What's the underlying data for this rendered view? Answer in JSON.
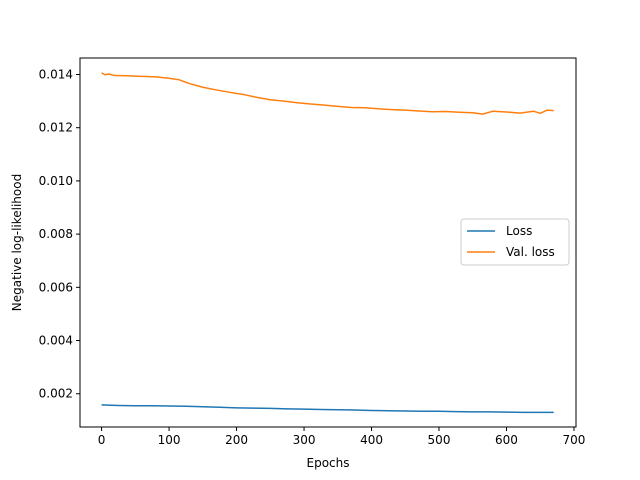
{
  "chart_data": {
    "type": "line",
    "title": "",
    "xlabel": "Epochs",
    "ylabel": "Negative log-likelihood",
    "xlim": [
      -32,
      703
    ],
    "ylim": [
      0.00075,
      0.01462
    ],
    "xticks": [
      0,
      100,
      200,
      300,
      400,
      500,
      600,
      700
    ],
    "yticks": [
      0.002,
      0.004,
      0.006,
      0.008,
      0.01,
      0.012,
      0.014
    ],
    "ytick_labels": [
      "0.002",
      "0.004",
      "0.006",
      "0.008",
      "0.010",
      "0.012",
      "0.014"
    ],
    "legend_position": "center-right",
    "grid": false,
    "series": [
      {
        "name": "Loss",
        "color": "#1f77b4",
        "x": [
          0,
          25,
          50,
          75,
          100,
          125,
          150,
          175,
          200,
          225,
          250,
          275,
          300,
          325,
          350,
          375,
          400,
          425,
          450,
          475,
          500,
          525,
          550,
          575,
          600,
          625,
          650,
          670
        ],
        "y": [
          0.00158,
          0.00156,
          0.00155,
          0.00155,
          0.00154,
          0.00153,
          0.00151,
          0.00149,
          0.00147,
          0.00146,
          0.00145,
          0.00143,
          0.00142,
          0.00141,
          0.0014,
          0.00139,
          0.00137,
          0.00136,
          0.00135,
          0.00134,
          0.00134,
          0.00133,
          0.00132,
          0.00132,
          0.00131,
          0.0013,
          0.0013,
          0.0013
        ]
      },
      {
        "name": "Val. loss",
        "color": "#ff7f0e",
        "x": [
          0,
          5,
          10,
          20,
          40,
          60,
          80,
          100,
          115,
          130,
          150,
          170,
          190,
          210,
          230,
          250,
          270,
          290,
          310,
          330,
          350,
          370,
          390,
          410,
          430,
          450,
          470,
          490,
          510,
          530,
          550,
          565,
          580,
          600,
          620,
          640,
          650,
          660,
          670
        ],
        "y": [
          0.01406,
          0.01399,
          0.01402,
          0.01396,
          0.01395,
          0.01393,
          0.01391,
          0.01386,
          0.0138,
          0.01366,
          0.01352,
          0.01342,
          0.01333,
          0.01325,
          0.01314,
          0.01305,
          0.013,
          0.01294,
          0.01289,
          0.01285,
          0.0128,
          0.01276,
          0.01275,
          0.01271,
          0.01268,
          0.01266,
          0.01263,
          0.0126,
          0.01261,
          0.01258,
          0.01256,
          0.01251,
          0.01262,
          0.01259,
          0.01255,
          0.01262,
          0.01254,
          0.01266,
          0.01264
        ]
      }
    ]
  }
}
